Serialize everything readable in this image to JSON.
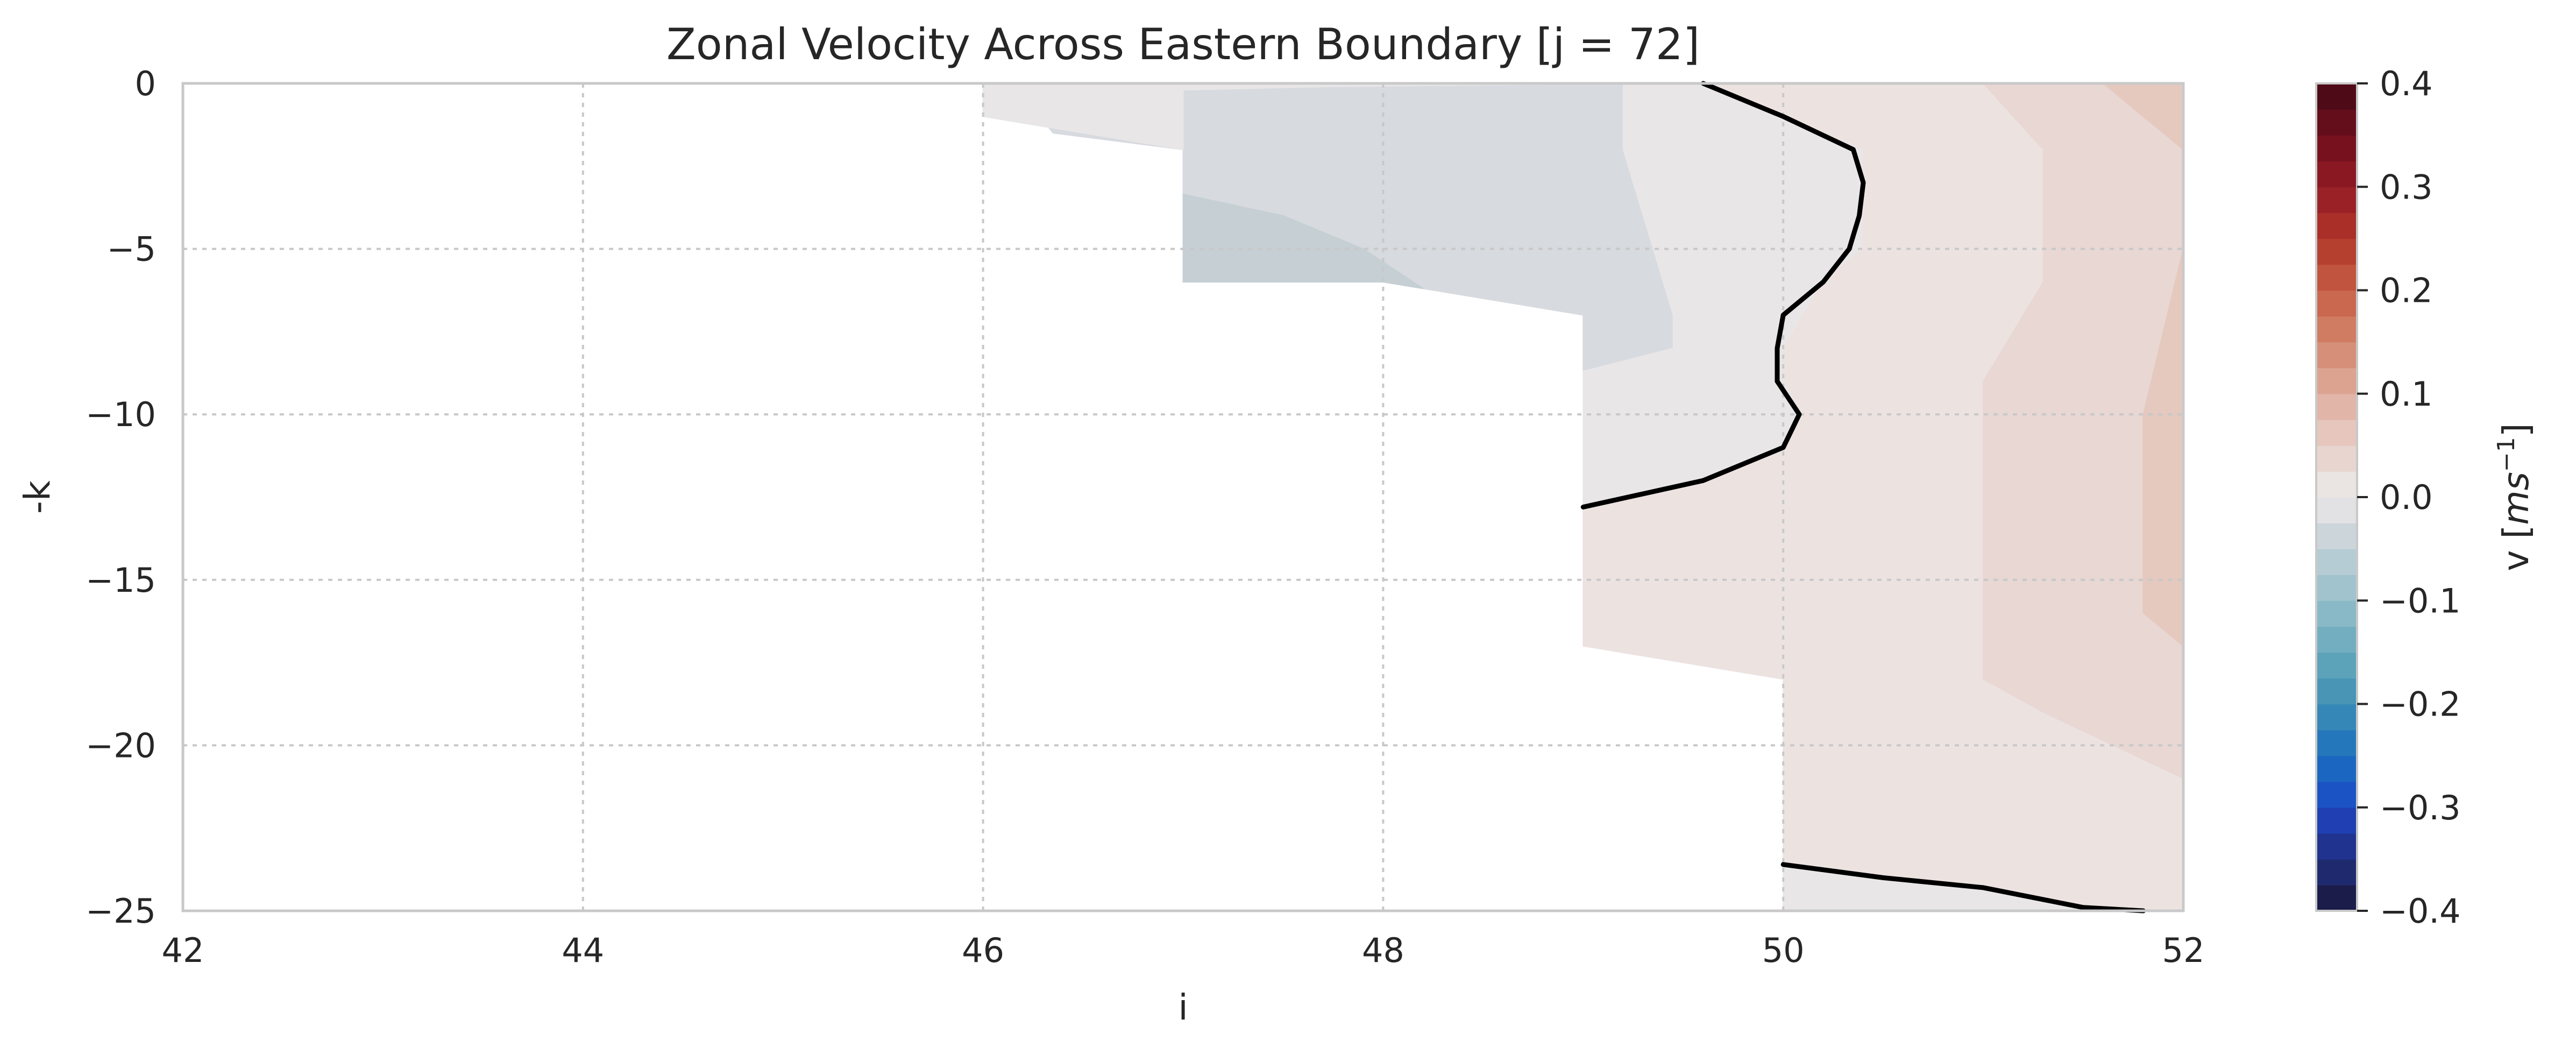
{
  "chart_data": {
    "type": "contour",
    "title": "Zonal Velocity Across Eastern Boundary [j = 72]",
    "xlabel": "i",
    "ylabel": "-k",
    "xlim": [
      42,
      52
    ],
    "ylim": [
      -25,
      0
    ],
    "x_ticks": [
      "42",
      "44",
      "46",
      "48",
      "50",
      "52"
    ],
    "x_tick_values": [
      42,
      44,
      46,
      48,
      50,
      52
    ],
    "y_ticks": [
      "0",
      "−5",
      "−10",
      "−15",
      "−20",
      "−25"
    ],
    "y_tick_values": [
      0,
      -5,
      -10,
      -15,
      -20,
      -25
    ],
    "grid": true,
    "colorbar": {
      "label_text": "v [",
      "label_unit": "ms",
      "label_exponent": "−1",
      "label_close": "]",
      "vmin": -0.4,
      "vmax": 0.4,
      "ticks": [
        "−0.4",
        "−0.3",
        "−0.2",
        "−0.1",
        "0.0",
        "0.1",
        "0.2",
        "0.3",
        "0.4"
      ],
      "tick_values": [
        -0.4,
        -0.3,
        -0.2,
        -0.1,
        0.0,
        0.1,
        0.2,
        0.3,
        0.4
      ],
      "levels": 32,
      "colors": [
        "#1b1c4a",
        "#1f2a6e",
        "#20338f",
        "#1f3fb2",
        "#1b53c5",
        "#1b66c0",
        "#2577bb",
        "#3587b7",
        "#4895b6",
        "#5ca3ba",
        "#72aec0",
        "#89b9c6",
        "#a0c3cd",
        "#b6ccd4",
        "#ccd5da",
        "#e2e2e4",
        "#eae4e2",
        "#e8d5d0",
        "#e6c6bd",
        "#e1b5a8",
        "#dca391",
        "#d6907a",
        "#d07c63",
        "#c9684f",
        "#c1543e",
        "#b6402f",
        "#a92f28",
        "#9a2226",
        "#8a1822",
        "#78111e",
        "#640d1b",
        "#4f0a18"
      ]
    },
    "regions": [
      {
        "name": "region-weak-negative-a",
        "value": -0.02,
        "color": "#d7dadf",
        "points": [
          [
            46.15,
            0
          ],
          [
            49.6,
            0
          ],
          [
            49.25,
            -2
          ],
          [
            49.45,
            -7
          ],
          [
            49.45,
            -8
          ],
          [
            49.0,
            -8.7
          ],
          [
            49.0,
            -7
          ],
          [
            48.0,
            -6
          ],
          [
            47.0,
            -6
          ],
          [
            47.0,
            -2
          ],
          [
            46.35,
            -1.5
          ]
        ]
      },
      {
        "name": "region-weak-negative-b",
        "value": -0.05,
        "color": "#c5cfd4",
        "points": [
          [
            47.0,
            -3.35
          ],
          [
            47.5,
            -4
          ],
          [
            47.9,
            -5
          ],
          [
            48.2,
            -6.2
          ],
          [
            48.0,
            -6
          ],
          [
            47.0,
            -6
          ]
        ]
      },
      {
        "name": "region-near-zero-top",
        "value": 0.0,
        "color": "#e8e6e7",
        "points": [
          [
            46.0,
            0
          ],
          [
            46.0,
            -1
          ],
          [
            47.0,
            -2
          ],
          [
            47.0,
            -0.2
          ],
          [
            47.7,
            -0.1
          ],
          [
            49.2,
            0
          ],
          [
            49.2,
            -2
          ],
          [
            49.45,
            -7
          ],
          [
            49.45,
            -8
          ],
          [
            49.0,
            -8.7
          ],
          [
            49.0,
            -12.8
          ],
          [
            49.6,
            -12
          ],
          [
            50.0,
            -11
          ],
          [
            50.1,
            -10
          ],
          [
            50.0,
            -9
          ],
          [
            50.0,
            -8
          ],
          [
            50.2,
            -6
          ],
          [
            50.4,
            -5
          ],
          [
            50.4,
            -2
          ],
          [
            50.0,
            -1
          ],
          [
            49.6,
            0
          ]
        ]
      },
      {
        "name": "region-weak-positive",
        "value": 0.02,
        "color": "#ece3e1",
        "points": [
          [
            49.6,
            0
          ],
          [
            50.0,
            -1
          ],
          [
            50.4,
            -2
          ],
          [
            50.4,
            -5
          ],
          [
            50.2,
            -6
          ],
          [
            50.0,
            -8
          ],
          [
            50.0,
            -9
          ],
          [
            50.1,
            -10
          ],
          [
            50.0,
            -11
          ],
          [
            49.6,
            -12
          ],
          [
            49.0,
            -12.8
          ],
          [
            49.0,
            -17
          ],
          [
            50.0,
            -18
          ],
          [
            50.0,
            -23.6
          ],
          [
            51.5,
            -25
          ],
          [
            52.0,
            -25
          ],
          [
            52.0,
            0
          ]
        ]
      },
      {
        "name": "region-positive-mid",
        "value": 0.05,
        "color": "#e8d7d3",
        "points": [
          [
            51.0,
            0
          ],
          [
            51.3,
            -2
          ],
          [
            51.3,
            -6
          ],
          [
            51.0,
            -9
          ],
          [
            51.0,
            -18
          ],
          [
            51.3,
            -19
          ],
          [
            52.0,
            -21
          ],
          [
            52.0,
            0
          ]
        ]
      },
      {
        "name": "region-positive-edge",
        "value": 0.08,
        "color": "#e5c9be",
        "points": [
          [
            51.6,
            0
          ],
          [
            52.0,
            -2
          ],
          [
            52.0,
            -17
          ],
          [
            51.8,
            -16
          ],
          [
            51.8,
            -10
          ],
          [
            52.0,
            -5
          ],
          [
            52.0,
            0
          ]
        ]
      },
      {
        "name": "region-near-zero-bottom",
        "value": 0.0,
        "color": "#e8e6e7",
        "points": [
          [
            50.0,
            -23.6
          ],
          [
            50.5,
            -24
          ],
          [
            51.0,
            -24.3
          ],
          [
            51.5,
            -25
          ],
          [
            50.0,
            -25
          ]
        ]
      }
    ],
    "contour_lines": [
      {
        "name": "zero-contour-upper",
        "level": 0.0,
        "points": [
          [
            49.6,
            0
          ],
          [
            50.0,
            -1
          ],
          [
            50.35,
            -2
          ],
          [
            50.4,
            -3
          ],
          [
            50.38,
            -4
          ],
          [
            50.33,
            -5
          ],
          [
            50.2,
            -6
          ],
          [
            50.0,
            -7
          ],
          [
            49.97,
            -8
          ],
          [
            49.97,
            -9
          ],
          [
            50.08,
            -10
          ],
          [
            50.0,
            -11
          ],
          [
            49.6,
            -12
          ],
          [
            49.0,
            -12.8
          ]
        ]
      },
      {
        "name": "zero-contour-lower",
        "level": 0.0,
        "points": [
          [
            50.0,
            -23.6
          ],
          [
            50.5,
            -24
          ],
          [
            51.0,
            -24.3
          ],
          [
            51.5,
            -24.9
          ],
          [
            51.8,
            -25
          ]
        ]
      }
    ]
  }
}
